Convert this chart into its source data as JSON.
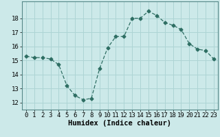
{
  "x": [
    0,
    1,
    2,
    3,
    4,
    5,
    6,
    7,
    8,
    9,
    10,
    11,
    12,
    13,
    14,
    15,
    16,
    17,
    18,
    19,
    20,
    21,
    22,
    23
  ],
  "y": [
    15.3,
    15.2,
    15.2,
    15.1,
    14.7,
    13.2,
    12.5,
    12.2,
    12.3,
    14.4,
    15.9,
    16.7,
    16.7,
    18.0,
    18.0,
    18.5,
    18.2,
    17.7,
    17.5,
    17.2,
    16.2,
    15.8,
    15.7,
    15.1
  ],
  "xlabel": "Humidex (Indice chaleur)",
  "ylim": [
    11.5,
    19.2
  ],
  "xlim": [
    -0.5,
    23.5
  ],
  "yticks": [
    12,
    13,
    14,
    15,
    16,
    17,
    18
  ],
  "xticks": [
    0,
    1,
    2,
    3,
    4,
    5,
    6,
    7,
    8,
    9,
    10,
    11,
    12,
    13,
    14,
    15,
    16,
    17,
    18,
    19,
    20,
    21,
    22,
    23
  ],
  "line_color": "#2e6e63",
  "marker": "D",
  "marker_size": 2.5,
  "background_color": "#cce9e9",
  "grid_color": "#add4d4",
  "xlabel_fontsize": 7.5,
  "tick_fontsize": 6.5
}
